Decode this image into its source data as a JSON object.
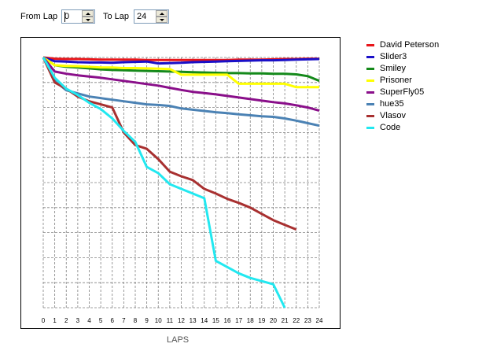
{
  "controls": {
    "from_label": "From Lap",
    "from_value": "0",
    "to_label": "To Lap",
    "to_value": "24"
  },
  "chart_data": {
    "type": "line",
    "xlabel": "LAPS",
    "xticks": [
      "0",
      "1",
      "2",
      "3",
      "4",
      "5",
      "6",
      "7",
      "8",
      "9",
      "10",
      "11",
      "12",
      "13",
      "14",
      "15",
      "16",
      "17",
      "18",
      "19",
      "20",
      "21",
      "22",
      "23",
      "24"
    ],
    "xlim": [
      0,
      24
    ],
    "grid": true,
    "legend_placement": "right",
    "series": [
      {
        "name": "David Peterson",
        "color": "#e8151a",
        "x": [
          0,
          1,
          2,
          3,
          4,
          5,
          6,
          7,
          8,
          9,
          10,
          11,
          12,
          13,
          14,
          15,
          16,
          17,
          18,
          19,
          20,
          21,
          22,
          23,
          24
        ],
        "y": [
          100,
          99.6,
          99.5,
          99.5,
          99.4,
          99.3,
          99.3,
          99.3,
          99.3,
          99.2,
          99.2,
          99.2,
          99.2,
          99.2,
          99.2,
          99.2,
          99.2,
          99.3,
          99.3,
          99.3,
          99.4,
          99.5,
          99.5,
          99.6,
          99.6
        ]
      },
      {
        "name": "Slider3",
        "color": "#1a10c8",
        "x": [
          0,
          1,
          2,
          3,
          4,
          5,
          6,
          7,
          8,
          9,
          10,
          11,
          12,
          13,
          14,
          15,
          16,
          17,
          18,
          19,
          20,
          21,
          22,
          23,
          24
        ],
        "y": [
          100,
          98.8,
          98.7,
          98.5,
          98.4,
          98.4,
          98.3,
          98.5,
          98.6,
          98.7,
          98.1,
          98.2,
          98.3,
          98.5,
          98.6,
          98.7,
          98.8,
          98.9,
          99.0,
          99.1,
          99.1,
          99.2,
          99.3,
          99.4,
          99.5
        ]
      },
      {
        "name": "Smiley",
        "color": "#14891a",
        "x": [
          0,
          1,
          2,
          3,
          4,
          5,
          6,
          7,
          8,
          9,
          10,
          11,
          12,
          13,
          14,
          15,
          16,
          17,
          18,
          19,
          20,
          21,
          22,
          23,
          24
        ],
        "y": [
          100,
          97.5,
          97.0,
          96.8,
          96.5,
          96.2,
          96.0,
          95.9,
          95.8,
          95.7,
          95.6,
          95.5,
          95.4,
          95.3,
          95.2,
          95.1,
          95.0,
          95.0,
          94.9,
          94.9,
          94.8,
          94.8,
          94.6,
          94.0,
          92.5
        ]
      },
      {
        "name": "Prisoner",
        "color": "#ffff00",
        "x": [
          0,
          1,
          2,
          3,
          4,
          5,
          6,
          7,
          8,
          9,
          10,
          11,
          12,
          13,
          14,
          15,
          16,
          17,
          18,
          19,
          20,
          21,
          22,
          23,
          24
        ],
        "y": [
          100,
          97.5,
          97.3,
          97.2,
          97.0,
          96.8,
          96.8,
          96.6,
          96.6,
          96.5,
          96.4,
          96.3,
          94.5,
          94.5,
          94.5,
          94.5,
          94.5,
          91.6,
          91.6,
          91.6,
          91.6,
          91.6,
          90.5,
          90.5,
          90.5
        ]
      },
      {
        "name": "SuperFly05",
        "color": "#8a0f8a",
        "x": [
          0,
          1,
          2,
          3,
          4,
          5,
          6,
          7,
          8,
          9,
          10,
          11,
          12,
          13,
          14,
          15,
          16,
          17,
          18,
          19,
          20,
          21,
          22,
          23,
          24
        ],
        "y": [
          100,
          95.5,
          94.8,
          94.3,
          93.9,
          93.5,
          93.0,
          92.5,
          92.0,
          91.5,
          91.0,
          90.3,
          89.6,
          89.0,
          88.6,
          88.2,
          87.7,
          87.2,
          86.7,
          86.2,
          85.7,
          85.3,
          84.7,
          84.0,
          83.0
        ]
      },
      {
        "name": "hue35",
        "color": "#4b82b4",
        "x": [
          0,
          1,
          2,
          3,
          4,
          5,
          6,
          7,
          8,
          9,
          10,
          11,
          12,
          13,
          14,
          15,
          16,
          17,
          18,
          19,
          20,
          21,
          22,
          23,
          24
        ],
        "y": [
          100,
          92.5,
          89.5,
          88.5,
          87.5,
          87.0,
          86.5,
          86.0,
          85.5,
          85.0,
          84.8,
          84.5,
          83.7,
          83.3,
          82.9,
          82.5,
          82.2,
          81.8,
          81.5,
          81.2,
          81.0,
          80.5,
          79.8,
          79.0,
          78.2
        ]
      },
      {
        "name": "Vlasov",
        "color": "#a83030",
        "x": [
          0,
          1,
          2,
          3,
          4,
          5,
          6,
          7,
          8,
          9,
          10,
          11,
          12,
          13,
          14,
          15,
          16,
          17,
          18,
          19,
          20,
          21,
          22
        ],
        "y": [
          100,
          92.0,
          90.0,
          87.5,
          86.0,
          85.0,
          84.0,
          76.0,
          72.0,
          70.8,
          67.5,
          63.5,
          62.0,
          60.8,
          58.0,
          56.5,
          54.8,
          53.5,
          52.0,
          50.0,
          48.0,
          46.5,
          45.0
        ]
      },
      {
        "name": "Code",
        "color": "#22e8f0",
        "x": [
          0,
          1,
          2,
          3,
          4,
          5,
          6,
          7,
          8,
          9,
          10,
          11,
          12,
          13,
          14,
          15,
          16,
          17,
          18,
          19,
          20,
          21
        ],
        "y": [
          100,
          93.5,
          90.0,
          88.0,
          85.5,
          83.5,
          80.5,
          76.5,
          73.0,
          65.0,
          63.0,
          59.5,
          58.0,
          56.5,
          55.0,
          35.0,
          33.0,
          31.0,
          29.5,
          28.5,
          27.5,
          20.0
        ]
      }
    ]
  }
}
